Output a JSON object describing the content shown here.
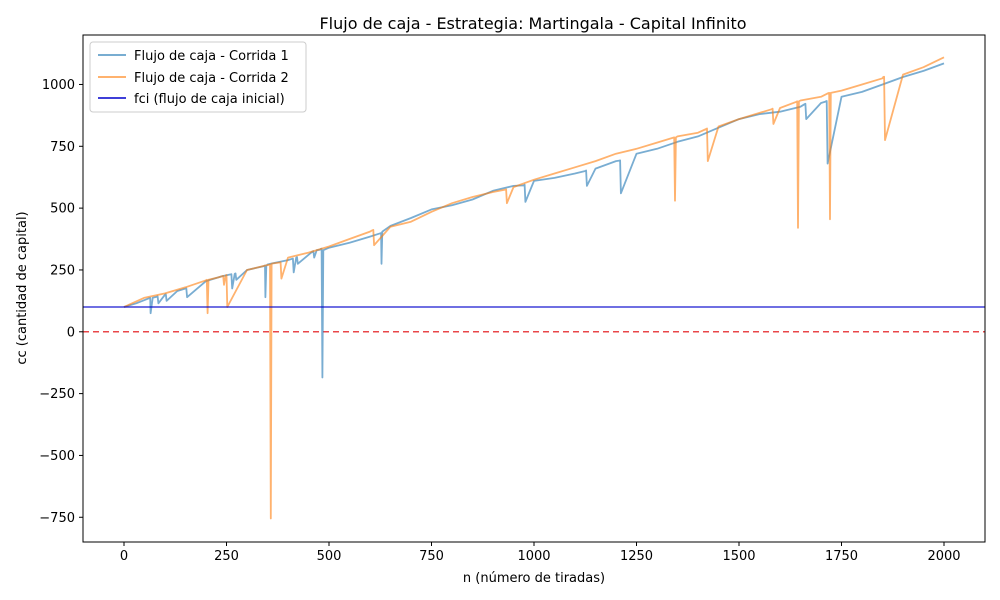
{
  "chart_data": {
    "type": "line",
    "title": "Flujo de caja - Estrategia: Martingala - Capital Infinito",
    "xlabel": "n (número de tiradas)",
    "ylabel": "cc (cantidad de capital)",
    "xlim": [
      -100,
      2100
    ],
    "ylim": [
      -850,
      1200
    ],
    "xticks": [
      0,
      250,
      500,
      750,
      1000,
      1250,
      1500,
      1750,
      2000
    ],
    "yticks": [
      -750,
      -500,
      -250,
      0,
      250,
      500,
      750,
      1000
    ],
    "grid": false,
    "legend_position": "top-left",
    "series": [
      {
        "name": "Flujo de caja - Corrida 1",
        "color": "#1f77b4",
        "x": [
          0,
          30,
          60,
          64,
          65,
          70,
          80,
          82,
          84,
          100,
          102,
          104,
          130,
          150,
          152,
          154,
          200,
          240,
          260,
          262,
          264,
          270,
          272,
          274,
          300,
          340,
          342,
          344,
          345,
          347,
          350,
          360,
          400,
          410,
          412,
          414,
          420,
          422,
          424,
          460,
          462,
          464,
          470,
          478,
          480,
          482,
          484,
          486,
          500,
          550,
          600,
          625,
          627,
          628,
          630,
          650,
          700,
          750,
          800,
          850,
          900,
          950,
          975,
          977,
          979,
          1000,
          1050,
          1100,
          1125,
          1127,
          1129,
          1150,
          1200,
          1208,
          1210,
          1212,
          1250,
          1300,
          1350,
          1400,
          1450,
          1500,
          1550,
          1600,
          1650,
          1660,
          1662,
          1664,
          1700,
          1710,
          1712,
          1714,
          1716,
          1750,
          1800,
          1850,
          1900,
          1950,
          2000
        ],
        "values": [
          100,
          115,
          135,
          137,
          75,
          138,
          142,
          144,
          115,
          150,
          152,
          125,
          165,
          175,
          176,
          140,
          205,
          225,
          232,
          233,
          175,
          234,
          236,
          210,
          250,
          265,
          266,
          268,
          140,
          266,
          272,
          276,
          290,
          295,
          296,
          240,
          300,
          302,
          275,
          325,
          326,
          300,
          330,
          332,
          335,
          336,
          -185,
          330,
          340,
          360,
          385,
          398,
          399,
          275,
          405,
          428,
          460,
          495,
          512,
          535,
          570,
          590,
          592,
          595,
          525,
          610,
          622,
          640,
          650,
          652,
          590,
          660,
          690,
          692,
          693,
          560,
          720,
          740,
          768,
          790,
          825,
          860,
          880,
          890,
          910,
          920,
          922,
          860,
          925,
          930,
          932,
          933,
          680,
          950,
          970,
          1000,
          1030,
          1055,
          1085
        ]
      },
      {
        "name": "Flujo de caja - Corrida 2",
        "color": "#ff7f0e",
        "x": [
          0,
          50,
          100,
          150,
          200,
          202,
          204,
          206,
          230,
          240,
          242,
          244,
          248,
          250,
          252,
          300,
          350,
          354,
          356,
          358,
          360,
          362,
          380,
          382,
          384,
          400,
          450,
          500,
          550,
          600,
          605,
          608,
          610,
          650,
          700,
          750,
          800,
          850,
          900,
          930,
          932,
          934,
          950,
          1000,
          1050,
          1100,
          1150,
          1200,
          1250,
          1300,
          1340,
          1342,
          1344,
          1346,
          1350,
          1400,
          1420,
          1422,
          1424,
          1450,
          1500,
          1550,
          1580,
          1582,
          1584,
          1600,
          1640,
          1642,
          1644,
          1646,
          1650,
          1700,
          1718,
          1720,
          1722,
          1724,
          1750,
          1800,
          1850,
          1852,
          1854,
          1856,
          1900,
          1950,
          2000
        ],
        "values": [
          100,
          138,
          155,
          180,
          208,
          210,
          75,
          210,
          220,
          225,
          226,
          190,
          228,
          229,
          100,
          250,
          270,
          271,
          272,
          -755,
          275,
          276,
          280,
          281,
          215,
          300,
          320,
          345,
          375,
          405,
          410,
          412,
          350,
          425,
          445,
          485,
          520,
          545,
          565,
          575,
          576,
          520,
          585,
          615,
          640,
          665,
          690,
          720,
          740,
          765,
          785,
          786,
          530,
          786,
          790,
          805,
          820,
          822,
          690,
          830,
          860,
          885,
          900,
          902,
          840,
          905,
          930,
          932,
          420,
          932,
          935,
          950,
          965,
          966,
          455,
          966,
          975,
          1000,
          1025,
          1030,
          1031,
          775,
          1040,
          1070,
          1110
        ]
      },
      {
        "name": "fci (flujo de caja inicial)",
        "color": "#0000cc",
        "type": "hline",
        "y": 100
      }
    ],
    "reference_line": {
      "y": 0,
      "color": "#e41a1c",
      "style": "dashed"
    }
  }
}
